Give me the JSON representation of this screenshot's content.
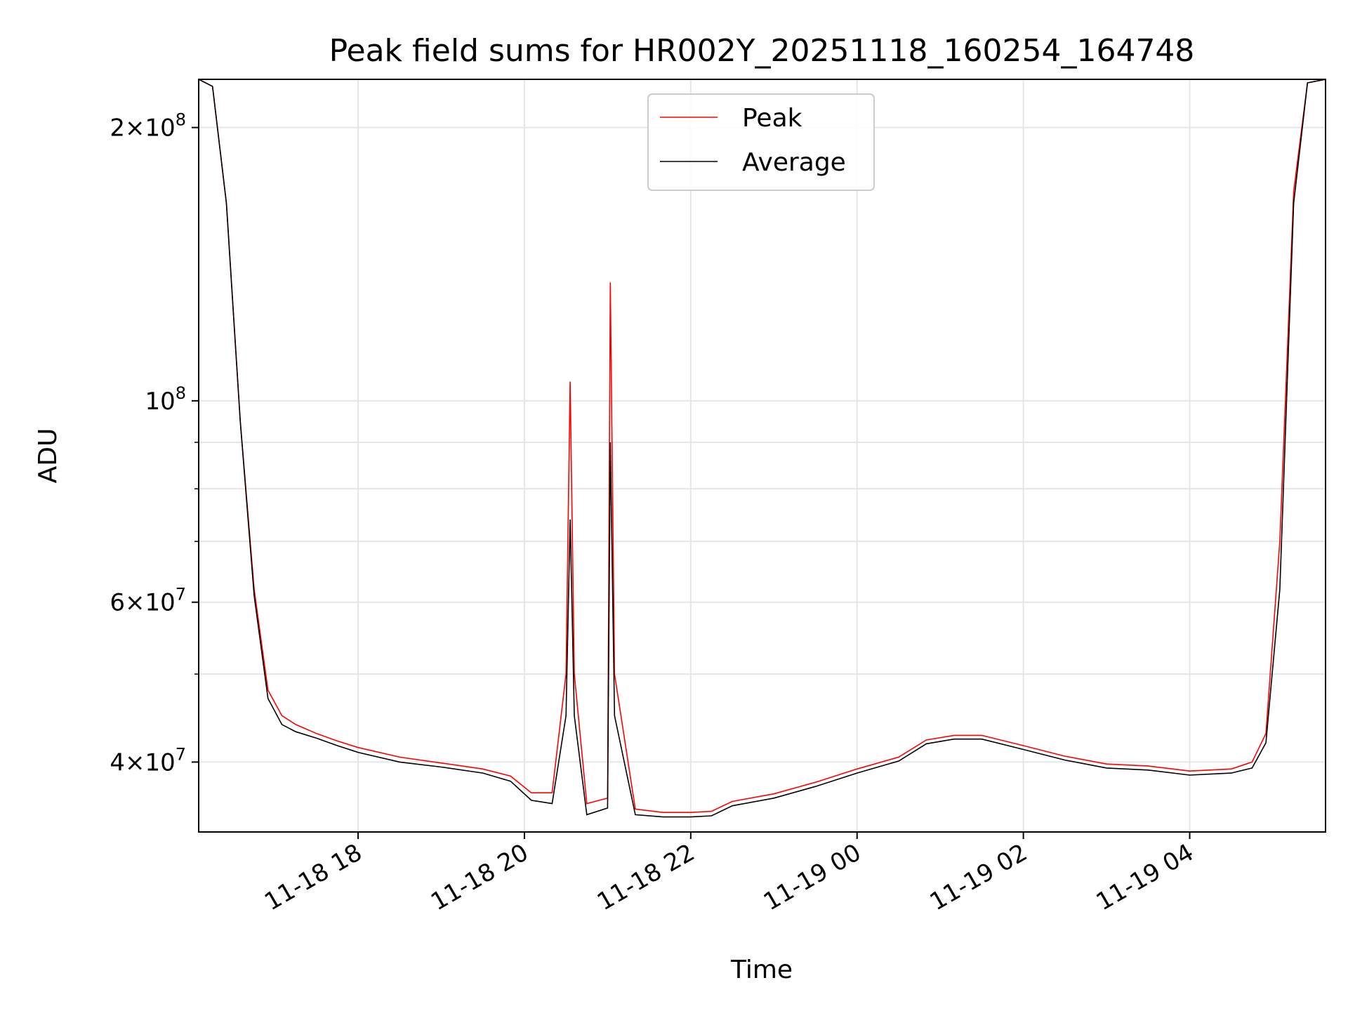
{
  "chart_data": {
    "type": "line",
    "title": "Peak field sums for HR002Y_20251118_160254_164748",
    "xlabel": "Time",
    "ylabel": "ADU",
    "yscale": "log",
    "xlim": [
      "2025-11-18 16:05",
      "2025-11-19 05:38"
    ],
    "ylim": [
      33500000,
      226000000
    ],
    "grid": true,
    "legend_position": "upper center",
    "x_ticks": [
      {
        "value": "2025-11-18 18:00",
        "label": "11-18 18"
      },
      {
        "value": "2025-11-18 20:00",
        "label": "11-18 20"
      },
      {
        "value": "2025-11-18 22:00",
        "label": "11-18 22"
      },
      {
        "value": "2025-11-19 00:00",
        "label": "11-19 00"
      },
      {
        "value": "2025-11-19 02:00",
        "label": "11-19 02"
      },
      {
        "value": "2025-11-19 04:00",
        "label": "11-19 04"
      }
    ],
    "y_major_ticks": [
      {
        "value": 40000000,
        "mantissa": "4",
        "exp": "7"
      },
      {
        "value": 60000000,
        "mantissa": "6",
        "exp": "7"
      },
      {
        "value": 100000000,
        "mantissa": "",
        "exp": "8"
      },
      {
        "value": 200000000,
        "mantissa": "2",
        "exp": "8"
      }
    ],
    "y_minor_ticks": [
      50000000,
      70000000,
      80000000,
      90000000
    ],
    "series": [
      {
        "name": "Peak",
        "color": "#ff0000",
        "x": [
          "2025-11-18 16:05",
          "2025-11-18 16:15",
          "2025-11-18 16:25",
          "2025-11-18 16:35",
          "2025-11-18 16:45",
          "2025-11-18 16:55",
          "2025-11-18 17:05",
          "2025-11-18 17:15",
          "2025-11-18 17:30",
          "2025-11-18 17:45",
          "2025-11-18 18:00",
          "2025-11-18 18:30",
          "2025-11-18 19:00",
          "2025-11-18 19:30",
          "2025-11-18 19:50",
          "2025-11-18 20:05",
          "2025-11-18 20:20",
          "2025-11-18 20:30",
          "2025-11-18 20:33",
          "2025-11-18 20:36",
          "2025-11-18 20:45",
          "2025-11-18 21:00",
          "2025-11-18 21:02",
          "2025-11-18 21:05",
          "2025-11-18 21:20",
          "2025-11-18 21:40",
          "2025-11-18 22:00",
          "2025-11-18 22:15",
          "2025-11-18 22:30",
          "2025-11-18 23:00",
          "2025-11-18 23:30",
          "2025-11-19 00:00",
          "2025-11-19 00:30",
          "2025-11-19 00:50",
          "2025-11-19 01:10",
          "2025-11-19 01:30",
          "2025-11-19 02:00",
          "2025-11-19 02:30",
          "2025-11-19 03:00",
          "2025-11-19 03:30",
          "2025-11-19 04:00",
          "2025-11-19 04:30",
          "2025-11-19 04:45",
          "2025-11-19 04:55",
          "2025-11-19 05:05",
          "2025-11-19 05:15",
          "2025-11-19 05:25",
          "2025-11-19 05:38"
        ],
        "y": [
          226000000,
          222000000,
          165000000,
          95000000,
          62000000,
          48000000,
          45000000,
          44000000,
          43000000,
          42200000,
          41500000,
          40500000,
          39900000,
          39300000,
          38600000,
          37000000,
          37000000,
          50000000,
          105000000,
          50000000,
          36000000,
          36500000,
          135000000,
          50000000,
          35500000,
          35200000,
          35200000,
          35300000,
          36200000,
          36900000,
          38000000,
          39300000,
          40500000,
          42300000,
          42800000,
          42800000,
          41700000,
          40600000,
          39800000,
          39600000,
          39100000,
          39300000,
          40000000,
          43000000,
          70000000,
          170000000,
          224000000,
          226000000
        ]
      },
      {
        "name": "Average",
        "color": "#000000",
        "x": [
          "2025-11-18 16:05",
          "2025-11-18 16:15",
          "2025-11-18 16:25",
          "2025-11-18 16:35",
          "2025-11-18 16:45",
          "2025-11-18 16:55",
          "2025-11-18 17:05",
          "2025-11-18 17:15",
          "2025-11-18 17:30",
          "2025-11-18 17:45",
          "2025-11-18 18:00",
          "2025-11-18 18:30",
          "2025-11-18 19:00",
          "2025-11-18 19:30",
          "2025-11-18 19:50",
          "2025-11-18 20:05",
          "2025-11-18 20:20",
          "2025-11-18 20:30",
          "2025-11-18 20:33",
          "2025-11-18 20:36",
          "2025-11-18 20:45",
          "2025-11-18 21:00",
          "2025-11-18 21:02",
          "2025-11-18 21:05",
          "2025-11-18 21:20",
          "2025-11-18 21:40",
          "2025-11-18 22:00",
          "2025-11-18 22:15",
          "2025-11-18 22:30",
          "2025-11-18 23:00",
          "2025-11-18 23:30",
          "2025-11-19 00:00",
          "2025-11-19 00:30",
          "2025-11-19 00:50",
          "2025-11-19 01:10",
          "2025-11-19 01:30",
          "2025-11-19 02:00",
          "2025-11-19 02:30",
          "2025-11-19 03:00",
          "2025-11-19 03:30",
          "2025-11-19 04:00",
          "2025-11-19 04:30",
          "2025-11-19 04:45",
          "2025-11-19 04:55",
          "2025-11-19 05:05",
          "2025-11-19 05:15",
          "2025-11-19 05:25",
          "2025-11-19 05:38"
        ],
        "y": [
          226000000,
          222000000,
          165000000,
          95000000,
          61000000,
          47000000,
          44000000,
          43200000,
          42500000,
          41700000,
          41000000,
          40000000,
          39500000,
          38900000,
          38100000,
          36300000,
          36000000,
          45000000,
          74000000,
          45000000,
          35000000,
          35600000,
          90000000,
          45000000,
          35000000,
          34800000,
          34800000,
          34900000,
          35800000,
          36500000,
          37600000,
          38900000,
          40100000,
          41900000,
          42400000,
          42400000,
          41300000,
          40200000,
          39400000,
          39200000,
          38700000,
          38900000,
          39400000,
          42000000,
          62000000,
          165000000,
          224000000,
          226000000
        ]
      }
    ]
  }
}
